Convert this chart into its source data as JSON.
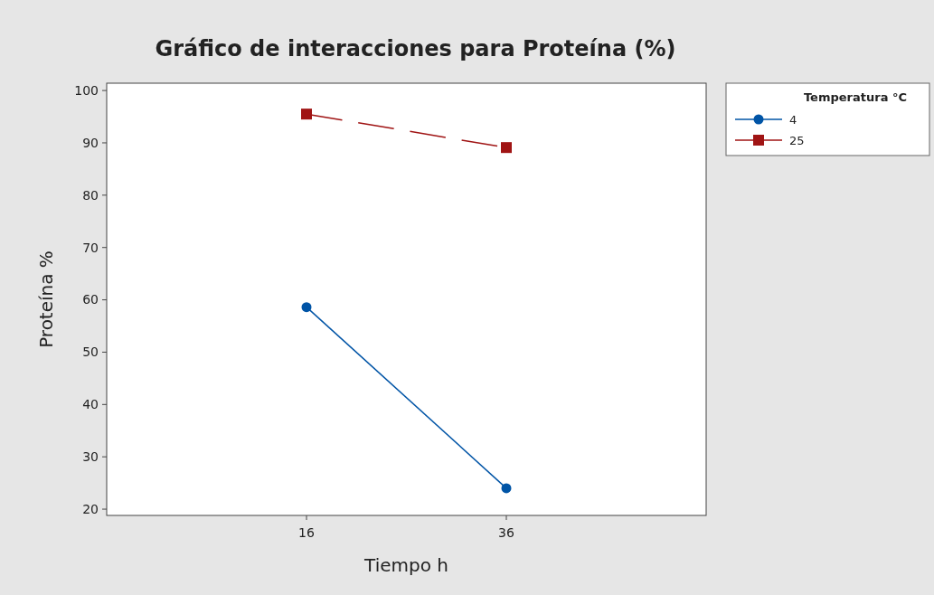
{
  "chart_data": {
    "type": "line",
    "title": "Gráfico de interacciones para Proteína (%)",
    "xlabel": "Tiempo h",
    "ylabel": "Proteína %",
    "legend_title": "Temperatura °C",
    "categories": [
      "16",
      "36"
    ],
    "series": [
      {
        "name": "4",
        "color": "#0054a6",
        "values": [
          58.6,
          24.0
        ],
        "marker": "circle",
        "line_style": "solid"
      },
      {
        "name": "25",
        "color": "#a01414",
        "values": [
          95.5,
          89.1
        ],
        "marker": "square",
        "line_style": "dashed"
      }
    ],
    "ylim": [
      18.8,
      101.4
    ],
    "yticks": [
      20,
      30,
      40,
      50,
      60,
      70,
      80,
      90,
      100
    ],
    "grid": false,
    "legend": "right"
  }
}
